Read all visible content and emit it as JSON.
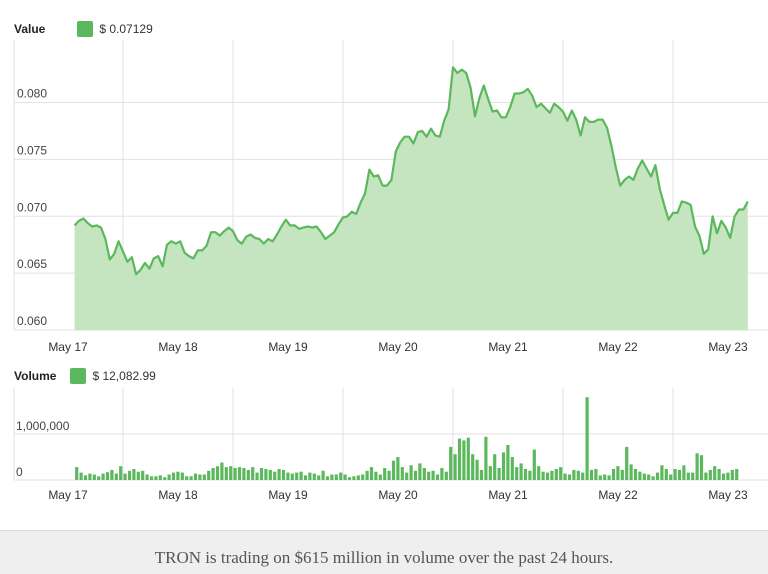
{
  "value_legend": {
    "label": "Value",
    "amount": "$ 0.07129"
  },
  "volume_legend": {
    "label": "Volume",
    "amount": "$ 12,082.99"
  },
  "footer_text": "TRON is trading on $615 million in volume over the past 24 hours.",
  "colors": {
    "line": "#5cb85c",
    "fill": "#c4e5c0",
    "bar": "#5cb85c",
    "grid": "#e2e2e2"
  },
  "chart_data": [
    {
      "type": "area",
      "x_ticks": [
        "May 17",
        "May 18",
        "May 19",
        "May 20",
        "May 21",
        "May 22",
        "May 23"
      ],
      "y_ticks": [
        "0.060",
        "0.065",
        "0.070",
        "0.075",
        "0.080"
      ],
      "ylim": [
        0.06,
        0.0855
      ],
      "xlim_days": [
        16.56,
        23.53
      ],
      "points": [
        [
          16.56,
          0.0692
        ],
        [
          16.6,
          0.0696
        ],
        [
          16.64,
          0.0698
        ],
        [
          16.68,
          0.0694
        ],
        [
          16.72,
          0.0691
        ],
        [
          16.76,
          0.0692
        ],
        [
          16.8,
          0.069
        ],
        [
          16.84,
          0.068
        ],
        [
          16.88,
          0.0662
        ],
        [
          16.92,
          0.0667
        ],
        [
          16.96,
          0.0678
        ],
        [
          17.0,
          0.0669
        ],
        [
          17.04,
          0.066
        ],
        [
          17.08,
          0.0664
        ],
        [
          17.12,
          0.0649
        ],
        [
          17.16,
          0.0653
        ],
        [
          17.2,
          0.0659
        ],
        [
          17.24,
          0.0654
        ],
        [
          17.28,
          0.0663
        ],
        [
          17.32,
          0.0665
        ],
        [
          17.36,
          0.0656
        ],
        [
          17.4,
          0.0675
        ],
        [
          17.44,
          0.0678
        ],
        [
          17.48,
          0.0676
        ],
        [
          17.52,
          0.0678
        ],
        [
          17.56,
          0.0668
        ],
        [
          17.6,
          0.0665
        ],
        [
          17.64,
          0.0663
        ],
        [
          17.68,
          0.067
        ],
        [
          17.72,
          0.067
        ],
        [
          17.76,
          0.0674
        ],
        [
          17.8,
          0.0686
        ],
        [
          17.84,
          0.0686
        ],
        [
          17.88,
          0.0683
        ],
        [
          17.92,
          0.0687
        ],
        [
          17.96,
          0.069
        ],
        [
          18.0,
          0.0687
        ],
        [
          18.04,
          0.0679
        ],
        [
          18.08,
          0.0676
        ],
        [
          18.12,
          0.0682
        ],
        [
          18.16,
          0.0684
        ],
        [
          18.2,
          0.0681
        ],
        [
          18.24,
          0.068
        ],
        [
          18.28,
          0.0676
        ],
        [
          18.32,
          0.068
        ],
        [
          18.36,
          0.0678
        ],
        [
          18.4,
          0.0684
        ],
        [
          18.44,
          0.0691
        ],
        [
          18.48,
          0.0697
        ],
        [
          18.52,
          0.0692
        ],
        [
          18.56,
          0.0692
        ],
        [
          18.6,
          0.0689
        ],
        [
          18.64,
          0.069
        ],
        [
          18.68,
          0.0691
        ],
        [
          18.72,
          0.069
        ],
        [
          18.76,
          0.0691
        ],
        [
          18.8,
          0.0686
        ],
        [
          18.84,
          0.068
        ],
        [
          18.88,
          0.0683
        ],
        [
          18.92,
          0.0686
        ],
        [
          18.96,
          0.0693
        ],
        [
          19.0,
          0.0699
        ],
        [
          19.04,
          0.07
        ],
        [
          19.08,
          0.0704
        ],
        [
          19.12,
          0.0702
        ],
        [
          19.16,
          0.0712
        ],
        [
          19.2,
          0.072
        ],
        [
          19.24,
          0.0741
        ],
        [
          19.28,
          0.0735
        ],
        [
          19.32,
          0.0736
        ],
        [
          19.36,
          0.0727
        ],
        [
          19.4,
          0.0727
        ],
        [
          19.44,
          0.0732
        ],
        [
          19.48,
          0.0757
        ],
        [
          19.52,
          0.0765
        ],
        [
          19.56,
          0.077
        ],
        [
          19.6,
          0.077
        ],
        [
          19.64,
          0.0764
        ],
        [
          19.68,
          0.0774
        ],
        [
          19.72,
          0.0775
        ],
        [
          19.76,
          0.077
        ],
        [
          19.8,
          0.0777
        ],
        [
          19.84,
          0.0771
        ],
        [
          19.88,
          0.077
        ],
        [
          19.92,
          0.0784
        ],
        [
          19.96,
          0.0794
        ],
        [
          20.0,
          0.0831
        ],
        [
          20.04,
          0.0826
        ],
        [
          20.08,
          0.0829
        ],
        [
          20.12,
          0.0826
        ],
        [
          20.16,
          0.0813
        ],
        [
          20.2,
          0.0788
        ],
        [
          20.24,
          0.0804
        ],
        [
          20.28,
          0.0815
        ],
        [
          20.32,
          0.0803
        ],
        [
          20.36,
          0.0792
        ],
        [
          20.4,
          0.0793
        ],
        [
          20.44,
          0.0787
        ],
        [
          20.48,
          0.0787
        ],
        [
          20.52,
          0.0796
        ],
        [
          20.56,
          0.0808
        ],
        [
          20.6,
          0.0808
        ],
        [
          20.64,
          0.0809
        ],
        [
          20.68,
          0.0812
        ],
        [
          20.72,
          0.0806
        ],
        [
          20.76,
          0.0796
        ],
        [
          20.8,
          0.0799
        ],
        [
          20.84,
          0.0795
        ],
        [
          20.88,
          0.0791
        ],
        [
          20.92,
          0.0799
        ],
        [
          20.96,
          0.0796
        ],
        [
          21.0,
          0.0792
        ],
        [
          21.04,
          0.0784
        ],
        [
          21.08,
          0.0793
        ],
        [
          21.12,
          0.0785
        ],
        [
          21.16,
          0.0771
        ],
        [
          21.2,
          0.0787
        ],
        [
          21.24,
          0.0783
        ],
        [
          21.28,
          0.0783
        ],
        [
          21.32,
          0.0785
        ],
        [
          21.36,
          0.0785
        ],
        [
          21.4,
          0.0778
        ],
        [
          21.44,
          0.0762
        ],
        [
          21.48,
          0.0743
        ],
        [
          21.52,
          0.0727
        ],
        [
          21.56,
          0.0732
        ],
        [
          21.6,
          0.0735
        ],
        [
          21.64,
          0.0732
        ],
        [
          21.68,
          0.0742
        ],
        [
          21.72,
          0.0749
        ],
        [
          21.76,
          0.0742
        ],
        [
          21.8,
          0.0735
        ],
        [
          21.84,
          0.0745
        ],
        [
          21.88,
          0.0724
        ],
        [
          21.92,
          0.071
        ],
        [
          21.96,
          0.0697
        ],
        [
          22.0,
          0.0703
        ],
        [
          22.04,
          0.0703
        ],
        [
          22.08,
          0.0713
        ],
        [
          22.12,
          0.0712
        ],
        [
          22.16,
          0.071
        ],
        [
          22.2,
          0.0691
        ],
        [
          22.24,
          0.0683
        ],
        [
          22.28,
          0.0667
        ],
        [
          22.32,
          0.0671
        ],
        [
          22.36,
          0.07
        ],
        [
          22.4,
          0.0685
        ],
        [
          22.44,
          0.0696
        ],
        [
          22.48,
          0.069
        ],
        [
          22.52,
          0.0681
        ],
        [
          22.56,
          0.07
        ],
        [
          22.6,
          0.0706
        ],
        [
          22.64,
          0.0706
        ],
        [
          22.68,
          0.0713
        ]
      ]
    },
    {
      "type": "bar",
      "y_ticks": [
        "0",
        "1,000,000"
      ],
      "ylim": [
        0,
        2000000
      ],
      "x_ticks": [
        "May 17",
        "May 18",
        "May 19",
        "May 20",
        "May 21",
        "May 22",
        "May 23"
      ],
      "bar_start_day": 16.56,
      "bar_step_days": 0.04,
      "values": [
        280000,
        160000,
        100000,
        140000,
        120000,
        80000,
        140000,
        170000,
        220000,
        140000,
        300000,
        140000,
        200000,
        240000,
        180000,
        200000,
        120000,
        80000,
        80000,
        100000,
        60000,
        120000,
        160000,
        180000,
        160000,
        80000,
        80000,
        140000,
        120000,
        120000,
        200000,
        260000,
        300000,
        380000,
        280000,
        300000,
        260000,
        280000,
        260000,
        220000,
        280000,
        160000,
        260000,
        240000,
        220000,
        180000,
        240000,
        220000,
        160000,
        140000,
        160000,
        180000,
        100000,
        160000,
        140000,
        100000,
        200000,
        80000,
        120000,
        120000,
        160000,
        120000,
        60000,
        80000,
        100000,
        120000,
        200000,
        280000,
        180000,
        120000,
        260000,
        200000,
        420000,
        500000,
        280000,
        160000,
        320000,
        200000,
        360000,
        260000,
        180000,
        200000,
        120000,
        260000,
        180000,
        720000,
        560000,
        900000,
        860000,
        920000,
        560000,
        440000,
        220000,
        940000,
        300000,
        560000,
        260000,
        600000,
        760000,
        500000,
        280000,
        360000,
        240000,
        200000,
        660000,
        300000,
        180000,
        160000,
        200000,
        240000,
        280000,
        140000,
        120000,
        220000,
        200000,
        160000,
        1800000,
        220000,
        240000,
        100000,
        120000,
        100000,
        240000,
        300000,
        220000,
        720000,
        340000,
        240000,
        180000,
        140000,
        120000,
        80000,
        160000,
        320000,
        240000,
        120000,
        240000,
        220000,
        320000,
        160000,
        160000,
        580000,
        540000,
        160000,
        220000,
        300000,
        240000,
        140000,
        160000,
        220000,
        240000
      ]
    }
  ]
}
